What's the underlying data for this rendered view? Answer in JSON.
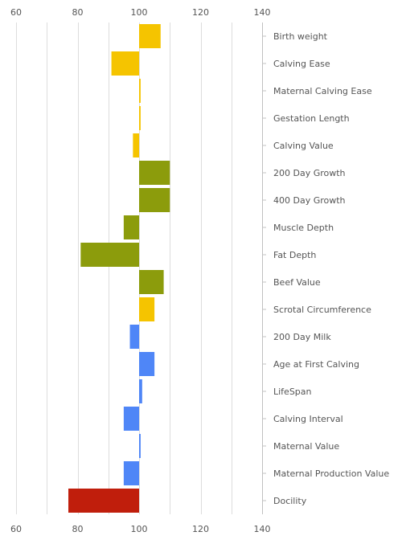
{
  "chart_data": {
    "type": "bar",
    "orientation": "horizontal",
    "xlim": [
      60,
      140
    ],
    "xticks": [
      60,
      80,
      100,
      120,
      140
    ],
    "baseline": 100,
    "grid": true,
    "legend": "none",
    "categories": [
      "Birth weight",
      "Calving Ease",
      "Maternal Calving Ease",
      "Gestation Length",
      "Calving Value",
      "200 Day Growth",
      "400 Day Growth",
      "Muscle Depth",
      "Fat Depth",
      "Beef Value",
      "Scrotal Circumference",
      "200 Day Milk",
      "Age at First Calving",
      "LifeSpan",
      "Calving Interval",
      "Maternal Value",
      "Maternal Production Value",
      "Docility"
    ],
    "values": [
      107,
      91,
      100.5,
      100.5,
      98,
      110,
      110,
      95,
      81,
      108,
      105,
      97,
      105,
      101,
      95,
      100.5,
      95,
      77
    ],
    "colors": [
      "#f5c400",
      "#f5c400",
      "#f5c400",
      "#f5c400",
      "#f5c400",
      "#8c9c0c",
      "#8c9c0c",
      "#8c9c0c",
      "#8c9c0c",
      "#8c9c0c",
      "#f5c400",
      "#4f86f7",
      "#4f86f7",
      "#4f86f7",
      "#4f86f7",
      "#4f86f7",
      "#4f86f7",
      "#c01e0c"
    ]
  }
}
